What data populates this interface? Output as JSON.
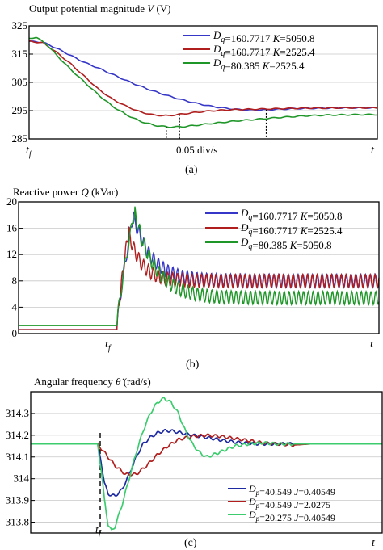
{
  "chart_data": [
    {
      "id": "a",
      "type": "line",
      "title": "Output potential magnitude V (V)",
      "title_parts": [
        {
          "t": "Output potential magnitude ",
          "i": false
        },
        {
          "t": "V",
          "i": true
        },
        {
          "t": " (V)",
          "i": false
        }
      ],
      "xlabel_mid": "0.05 div/s",
      "x_start_label": "t_f",
      "x_end_label": "t",
      "panel_label": "(a)",
      "xlim": [
        0,
        1
      ],
      "ylim": [
        285,
        325
      ],
      "yticks": [
        285,
        295,
        305,
        315,
        325
      ],
      "legend_position": "right",
      "dotted_markers": [
        0.394,
        0.432,
        0.681
      ],
      "series": [
        {
          "name": "Dq=160.7717 K=5050.8",
          "legend": [
            [
              "D",
              "i"
            ],
            [
              "q",
              "sub"
            ],
            [
              "=160.7717 ",
              ""
            ],
            [
              "K",
              "i"
            ],
            [
              "=5050.8",
              ""
            ]
          ],
          "color": "#3636c8",
          "x": [
            0.0,
            0.04,
            0.08,
            0.12,
            0.16,
            0.2,
            0.24,
            0.28,
            0.32,
            0.36,
            0.4,
            0.44,
            0.48,
            0.52,
            0.56,
            0.6,
            0.64,
            0.68,
            0.72,
            0.76,
            0.8,
            0.85,
            0.9,
            0.95,
            1.0
          ],
          "y": [
            319.5,
            319.2,
            317.0,
            314.5,
            312.0,
            310.0,
            307.8,
            305.6,
            303.6,
            301.8,
            300.2,
            298.8,
            297.6,
            296.6,
            295.9,
            295.4,
            295.2,
            295.3,
            295.5,
            295.7,
            295.8,
            295.9,
            296.0,
            296.0,
            296.0
          ]
        },
        {
          "name": "Dq=160.7717 K=2525.4",
          "legend": [
            [
              "D",
              "i"
            ],
            [
              "q",
              "sub"
            ],
            [
              "=160.7717 ",
              ""
            ],
            [
              "K",
              "i"
            ],
            [
              "=2525.4",
              ""
            ]
          ],
          "color": "#b01e1e",
          "x": [
            0.0,
            0.04,
            0.08,
            0.12,
            0.16,
            0.2,
            0.24,
            0.28,
            0.32,
            0.36,
            0.4,
            0.44,
            0.48,
            0.52,
            0.56,
            0.6,
            0.64,
            0.68,
            0.72,
            0.76,
            0.8,
            0.85,
            0.9,
            0.95,
            1.0
          ],
          "y": [
            319.5,
            319.0,
            315.5,
            311.5,
            307.0,
            302.5,
            299.0,
            296.5,
            294.5,
            293.4,
            293.2,
            293.8,
            294.4,
            294.9,
            295.2,
            295.4,
            295.5,
            295.6,
            295.7,
            295.8,
            295.9,
            295.9,
            296.0,
            296.0,
            296.0
          ]
        },
        {
          "name": "Dq=80.385 K=2525.4",
          "legend": [
            [
              "D",
              "i"
            ],
            [
              "q",
              "sub"
            ],
            [
              "=80.385 ",
              ""
            ],
            [
              "K",
              "i"
            ],
            [
              "=2525.4",
              ""
            ]
          ],
          "color": "#1e9628",
          "x": [
            0.0,
            0.02,
            0.05,
            0.08,
            0.12,
            0.16,
            0.2,
            0.24,
            0.28,
            0.32,
            0.36,
            0.4,
            0.44,
            0.48,
            0.52,
            0.56,
            0.6,
            0.64,
            0.68,
            0.72,
            0.76,
            0.8,
            0.85,
            0.9,
            0.95,
            1.0
          ],
          "y": [
            320.5,
            321.0,
            318.5,
            314.5,
            309.5,
            305.0,
            300.5,
            296.5,
            293.5,
            291.2,
            289.8,
            289.2,
            289.3,
            289.8,
            290.4,
            290.9,
            291.4,
            291.8,
            292.2,
            292.6,
            292.9,
            293.2,
            293.4,
            293.5,
            293.6,
            293.6
          ]
        }
      ]
    },
    {
      "id": "b",
      "type": "line",
      "title": "Reactive power Q (kVar)",
      "title_parts": [
        {
          "t": "Reactive power ",
          "i": false
        },
        {
          "t": "Q",
          "i": true
        },
        {
          "t": "  (kVar)",
          "i": false
        }
      ],
      "x_fault_label": "t_f",
      "x_end_label": "t",
      "panel_label": "(b)",
      "xlim": [
        0,
        1
      ],
      "ylim": [
        0,
        20
      ],
      "yticks": [
        0,
        4,
        8,
        12,
        16,
        20
      ],
      "legend_position": "top-right",
      "fault_x": 0.273,
      "series": [
        {
          "name": "Dq=160.7717 K=5050.8",
          "legend": [
            [
              "D",
              "i"
            ],
            [
              "q",
              "sub"
            ],
            [
              "=160.7717 ",
              ""
            ],
            [
              "K",
              "i"
            ],
            [
              "=5050.8",
              ""
            ]
          ],
          "color": "#3636c8",
          "pre": 0.6,
          "peak_x": 0.318,
          "peak": 18.0,
          "steady": 8.0,
          "osc_amp": 1.0,
          "tau": 0.05
        },
        {
          "name": "Dq=160.7717 K=2525.4",
          "legend": [
            [
              "D",
              "i"
            ],
            [
              "q",
              "sub"
            ],
            [
              "=160.7717 ",
              ""
            ],
            [
              "K",
              "i"
            ],
            [
              "=2525.4",
              ""
            ]
          ],
          "color": "#b01e1e",
          "pre": 0.6,
          "peak_x": 0.305,
          "peak": 15.5,
          "steady": 8.0,
          "osc_amp": 1.0,
          "tau": 0.035
        },
        {
          "name": "Dq=80.385 K=5050.8",
          "legend": [
            [
              "D",
              "i"
            ],
            [
              "q",
              "sub"
            ],
            [
              "=80.385 ",
              ""
            ],
            [
              "K",
              "i"
            ],
            [
              "=5050.8",
              ""
            ]
          ],
          "color": "#1e9628",
          "pre": 1.2,
          "peak_x": 0.322,
          "peak": 18.5,
          "steady": 5.4,
          "osc_amp": 1.0,
          "tau": 0.055
        }
      ]
    },
    {
      "id": "c",
      "type": "line",
      "title": "Angular frequency θ̇ (rad/s)",
      "title_parts": [
        {
          "t": "Angular frequency ",
          "i": false
        },
        {
          "t": "θ̇",
          "i": true
        },
        {
          "t": "  (rad/s)",
          "i": false
        }
      ],
      "x_fault_label": "t_f",
      "x_end_label": "t",
      "panel_label": "(c)",
      "xlim": [
        0,
        1
      ],
      "ylim": [
        313.75,
        314.4
      ],
      "yticks": [
        313.8,
        313.9,
        314,
        314.1,
        314.2,
        314.3
      ],
      "legend_position": "bottom-right",
      "fault_x": 0.19,
      "series": [
        {
          "name": "Dp=40.549 J=0.40549",
          "legend": [
            [
              "D",
              "i"
            ],
            [
              "p",
              "sub"
            ],
            [
              "=40.549 ",
              ""
            ],
            [
              "J",
              "i"
            ],
            [
              "=0.40549",
              ""
            ]
          ],
          "color": "#1e2aa0",
          "x": [
            0.0,
            0.19,
            0.2,
            0.21,
            0.22,
            0.24,
            0.26,
            0.28,
            0.3,
            0.32,
            0.34,
            0.36,
            0.38,
            0.4,
            0.43,
            0.46,
            0.5,
            0.55,
            0.6,
            0.65,
            0.7,
            0.8,
            0.9,
            1.0
          ],
          "y": [
            314.16,
            314.16,
            314.08,
            313.98,
            313.93,
            313.92,
            313.95,
            314.02,
            314.1,
            314.16,
            314.19,
            314.21,
            314.22,
            314.22,
            314.21,
            314.2,
            314.19,
            314.175,
            314.165,
            314.16,
            314.16,
            314.16,
            314.16,
            314.16
          ]
        },
        {
          "name": "Dp=40.549 J=2.0275",
          "legend": [
            [
              "D",
              "i"
            ],
            [
              "p",
              "sub"
            ],
            [
              "=40.549 ",
              ""
            ],
            [
              "J",
              "i"
            ],
            [
              "=2.0275",
              ""
            ]
          ],
          "color": "#b01e1e",
          "x": [
            0.0,
            0.19,
            0.21,
            0.24,
            0.27,
            0.3,
            0.33,
            0.36,
            0.39,
            0.42,
            0.46,
            0.5,
            0.54,
            0.58,
            0.62,
            0.66,
            0.7,
            0.75,
            0.8,
            0.9,
            1.0
          ],
          "y": [
            314.16,
            314.16,
            314.12,
            314.06,
            314.02,
            314.02,
            314.06,
            314.11,
            314.15,
            314.18,
            314.195,
            314.2,
            314.195,
            314.185,
            314.175,
            314.165,
            314.16,
            314.155,
            314.16,
            314.16,
            314.16
          ]
        },
        {
          "name": "Dp=20.275 J=0.40549",
          "legend": [
            [
              "D",
              "i"
            ],
            [
              "p",
              "sub"
            ],
            [
              "=20.275 ",
              ""
            ],
            [
              "J",
              "i"
            ],
            [
              "=0.40549",
              ""
            ]
          ],
          "color": "#3ccc6e",
          "x": [
            0.0,
            0.19,
            0.2,
            0.21,
            0.22,
            0.23,
            0.24,
            0.26,
            0.28,
            0.3,
            0.32,
            0.34,
            0.36,
            0.38,
            0.4,
            0.42,
            0.44,
            0.46,
            0.48,
            0.5,
            0.52,
            0.55,
            0.58,
            0.62,
            0.66,
            0.7,
            0.8,
            0.9,
            1.0
          ],
          "y": [
            314.16,
            314.16,
            314.05,
            313.9,
            313.79,
            313.76,
            313.78,
            313.88,
            314.0,
            314.12,
            314.22,
            314.3,
            314.35,
            314.37,
            314.35,
            314.3,
            314.22,
            314.16,
            314.12,
            314.1,
            314.11,
            314.13,
            314.15,
            314.16,
            314.165,
            314.16,
            314.16,
            314.16,
            314.16
          ]
        }
      ]
    }
  ]
}
